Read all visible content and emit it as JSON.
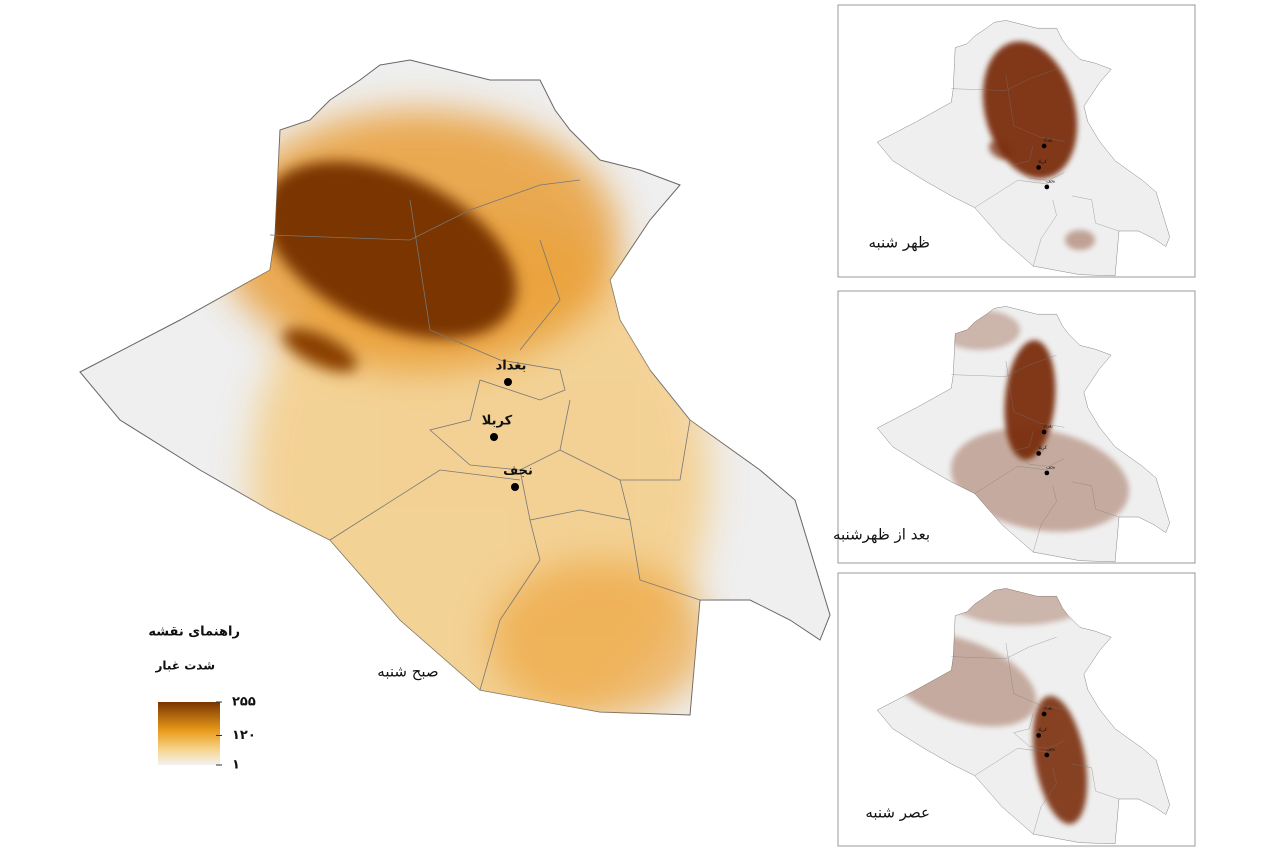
{
  "main_map": {
    "title": "صبح شنبه",
    "cities": [
      {
        "name": "بغداد"
      },
      {
        "name": "کربلا"
      },
      {
        "name": "نجف"
      }
    ]
  },
  "insets": [
    {
      "title": "ظهر شنبه"
    },
    {
      "title": "بعد از ظهرشنبه"
    },
    {
      "title": "عصر شنبه"
    }
  ],
  "legend": {
    "title": "راهنمای نقشه",
    "subtitle": "شدت غبار",
    "ticks": [
      {
        "value": 255,
        "label": "۲۵۵"
      },
      {
        "value": 120,
        "label": "۱۲۰"
      },
      {
        "value": 1,
        "label": "۱"
      }
    ]
  }
}
